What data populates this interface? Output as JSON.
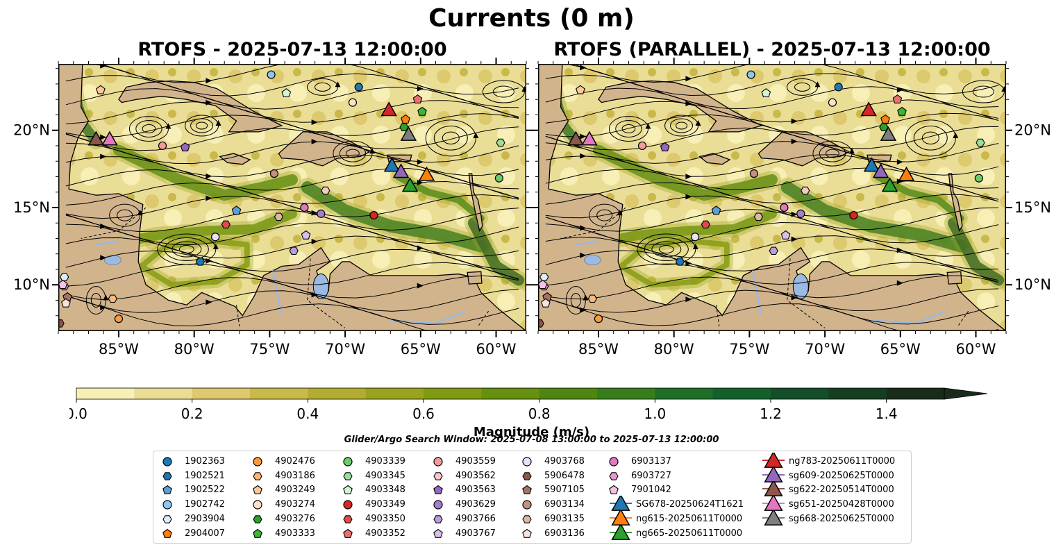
{
  "title": "Currents (0 m)",
  "panels": [
    {
      "title": "RTOFS - 2025-07-13 12:00:00"
    },
    {
      "title": "RTOFS (PARALLEL) - 2025-07-13 12:00:00"
    }
  ],
  "colorbar": {
    "label": "Magnitude (m/s)",
    "ticks": [
      "0.0",
      "0.2",
      "0.4",
      "0.6",
      "0.8",
      "1.0",
      "1.2",
      "1.4"
    ],
    "min": 0,
    "max": 1.5,
    "extend": "max",
    "colors": [
      "#f7efb5",
      "#eadd96",
      "#ddc96e",
      "#c9b94b",
      "#b2ad32",
      "#98a31e",
      "#7f9a13",
      "#669010",
      "#4f8612",
      "#377d1c",
      "#1f6d27",
      "#15602a",
      "#134e28",
      "#153d22",
      "#192c1a"
    ]
  },
  "search_window": "Glider/Argo Search Window: 2025-07-08 13:00:00 to 2025-07-13 12:00:00",
  "axes": {
    "lon_ticks": [
      "85°W",
      "80°W",
      "75°W",
      "70°W",
      "65°W",
      "60°W"
    ],
    "lat_ticks": [
      "20°N",
      "15°N",
      "10°N"
    ],
    "lon_range": [
      -89,
      -58
    ],
    "lat_range": [
      7,
      24.3
    ]
  },
  "land_color": "#d2b48c",
  "lake_color": "#9ab9e3",
  "legend": [
    {
      "label": "1902363",
      "marker": "circle",
      "color": "#1f77b4"
    },
    {
      "label": "1902521",
      "marker": "hexagon",
      "color": "#1f77b4"
    },
    {
      "label": "1902522",
      "marker": "pentagon",
      "color": "#5aa0d8"
    },
    {
      "label": "1902742",
      "marker": "circle",
      "color": "#8ec6ef"
    },
    {
      "label": "2903904",
      "marker": "hexagon",
      "color": "#dcefff"
    },
    {
      "label": "2904007",
      "marker": "pentagon",
      "color": "#ff7f0e"
    },
    {
      "label": "4902476",
      "marker": "circle",
      "color": "#f99a3d"
    },
    {
      "label": "4903186",
      "marker": "hexagon",
      "color": "#fbb67a"
    },
    {
      "label": "4903249",
      "marker": "pentagon",
      "color": "#fcc898"
    },
    {
      "label": "4903274",
      "marker": "circle",
      "color": "#fde2c6"
    },
    {
      "label": "4903276",
      "marker": "hexagon",
      "color": "#2ca02c"
    },
    {
      "label": "4903333",
      "marker": "pentagon",
      "color": "#3ab53a"
    },
    {
      "label": "4903339",
      "marker": "circle",
      "color": "#6acd6a"
    },
    {
      "label": "4903345",
      "marker": "hexagon",
      "color": "#98e098"
    },
    {
      "label": "4903348",
      "marker": "pentagon",
      "color": "#d2f5d2"
    },
    {
      "label": "4903349",
      "marker": "circle",
      "color": "#d62728"
    },
    {
      "label": "4903350",
      "marker": "hexagon",
      "color": "#e04a4a"
    },
    {
      "label": "4903352",
      "marker": "pentagon",
      "color": "#ec7070"
    },
    {
      "label": "4903559",
      "marker": "circle",
      "color": "#f29b9b"
    },
    {
      "label": "4903562",
      "marker": "hexagon",
      "color": "#f8c7c7"
    },
    {
      "label": "4903563",
      "marker": "pentagon",
      "color": "#9467bd"
    },
    {
      "label": "4903629",
      "marker": "circle",
      "color": "#a57fcc"
    },
    {
      "label": "4903766",
      "marker": "hexagon",
      "color": "#bb9ddb"
    },
    {
      "label": "4903767",
      "marker": "pentagon",
      "color": "#d4c0ea"
    },
    {
      "label": "4903768",
      "marker": "circle",
      "color": "#eadff8"
    },
    {
      "label": "5906478",
      "marker": "hexagon",
      "color": "#8c564b"
    },
    {
      "label": "5907105",
      "marker": "pentagon",
      "color": "#a57364"
    },
    {
      "label": "6903134",
      "marker": "circle",
      "color": "#c1927f"
    },
    {
      "label": "6903135",
      "marker": "hexagon",
      "color": "#dcb7a8"
    },
    {
      "label": "6903136",
      "marker": "pentagon",
      "color": "#f6e3da"
    },
    {
      "label": "6903137",
      "marker": "circle",
      "color": "#e377c2"
    },
    {
      "label": "6903727",
      "marker": "hexagon",
      "color": "#ea97d1"
    },
    {
      "label": "7901042",
      "marker": "pentagon",
      "color": "#f4c2e5"
    },
    {
      "label": "SG678-20250624T1621",
      "marker": "triangle",
      "color": "#1f77b4"
    },
    {
      "label": "ng615-20250611T0000",
      "marker": "triangle",
      "color": "#ff7f0e"
    },
    {
      "label": "ng665-20250611T0000",
      "marker": "triangle",
      "color": "#2ca02c"
    },
    {
      "label": "ng783-20250611T0000",
      "marker": "triangle",
      "color": "#d62728"
    },
    {
      "label": "sg609-20250625T0000",
      "marker": "triangle",
      "color": "#9467bd"
    },
    {
      "label": "sg622-20250514T0000",
      "marker": "triangle",
      "color": "#8c564b"
    },
    {
      "label": "sg651-20250428T0000",
      "marker": "triangle",
      "color": "#e377c2"
    },
    {
      "label": "sg668-20250625T0000",
      "marker": "triangle",
      "color": "#7f7f7f"
    }
  ],
  "chart_data": [
    {
      "type": "scatter",
      "panel": "RTOFS - 2025-07-13 12:00:00",
      "xlabel": "",
      "ylabel": "",
      "xlim": [
        -89,
        -58
      ],
      "ylim": [
        7,
        24.3
      ],
      "series": [
        {
          "name": "1902363",
          "points": [
            [
              -69.1,
              22.8
            ]
          ]
        },
        {
          "name": "1902742",
          "points": [
            [
              -74.9,
              23.6
            ]
          ]
        },
        {
          "name": "4903274",
          "points": [
            [
              -69.5,
              21.8
            ]
          ]
        },
        {
          "name": "4903339",
          "points": [
            [
              -59.8,
              16.9
            ]
          ]
        },
        {
          "name": "4903349",
          "points": [
            [
              -68.1,
              14.5
            ]
          ]
        },
        {
          "name": "4903559",
          "points": [
            [
              -82.1,
              19.0
            ]
          ]
        },
        {
          "name": "4903629",
          "points": [
            [
              -71.6,
              14.6
            ]
          ]
        },
        {
          "name": "4903768",
          "points": [
            [
              -78.6,
              13.1
            ]
          ]
        },
        {
          "name": "6903134",
          "points": [
            [
              -74.7,
              17.2
            ]
          ]
        },
        {
          "name": "6903137",
          "points": [
            [
              -72.7,
              15.0
            ]
          ]
        },
        {
          "name": "4902476",
          "points": [
            [
              -85.0,
              7.8
            ]
          ]
        },
        {
          "name": "1902521",
          "points": [
            [
              -79.6,
              11.5
            ]
          ]
        },
        {
          "name": "2903904",
          "points": [
            [
              -88.6,
              10.5
            ]
          ]
        },
        {
          "name": "4903186",
          "points": [
            [
              -85.4,
              9.1
            ]
          ]
        },
        {
          "name": "4903276",
          "points": [
            [
              -66.1,
              20.2
            ]
          ]
        },
        {
          "name": "4903345",
          "points": [
            [
              -59.7,
              19.2
            ]
          ]
        },
        {
          "name": "4903350",
          "points": [
            [
              -77.9,
              13.9
            ]
          ]
        },
        {
          "name": "4903562",
          "points": [
            [
              -71.3,
              16.1
            ]
          ]
        },
        {
          "name": "4903766",
          "points": [
            [
              -73.4,
              12.2
            ]
          ]
        },
        {
          "name": "5906478",
          "points": [
            [
              -88.9,
              7.5
            ]
          ]
        },
        {
          "name": "6903135",
          "points": [
            [
              -74.4,
              14.4
            ]
          ]
        },
        {
          "name": "6903727",
          "points": [
            [
              -88.6,
              9.9
            ]
          ]
        },
        {
          "name": "1902522",
          "points": [
            [
              -77.2,
              14.8
            ]
          ]
        },
        {
          "name": "2904007",
          "points": [
            [
              -66.0,
              20.7
            ]
          ]
        },
        {
          "name": "4903249",
          "points": [
            [
              -86.2,
              22.6
            ]
          ]
        },
        {
          "name": "4903333",
          "points": [
            [
              -64.9,
              21.2
            ]
          ]
        },
        {
          "name": "4903348",
          "points": [
            [
              -73.9,
              22.4
            ]
          ]
        },
        {
          "name": "4903352",
          "points": [
            [
              -65.2,
              22.0
            ]
          ]
        },
        {
          "name": "4903563",
          "points": [
            [
              -80.6,
              18.9
            ]
          ]
        },
        {
          "name": "4903767",
          "points": [
            [
              -72.6,
              13.2
            ]
          ]
        },
        {
          "name": "5907105",
          "points": [
            [
              -88.4,
              9.2
            ]
          ]
        },
        {
          "name": "6903136",
          "points": [
            [
              -88.5,
              8.8
            ]
          ]
        },
        {
          "name": "7901042",
          "points": [
            [
              -88.7,
              10.0
            ]
          ]
        },
        {
          "name": "SG678-20250624T1621",
          "points": [
            [
              -66.9,
              17.7
            ]
          ]
        },
        {
          "name": "ng615-20250611T0000",
          "points": [
            [
              -64.6,
              17.1
            ]
          ]
        },
        {
          "name": "ng665-20250611T0000",
          "points": [
            [
              -65.7,
              16.4
            ]
          ]
        },
        {
          "name": "ng783-20250611T0000",
          "points": [
            [
              -67.1,
              21.3
            ]
          ]
        },
        {
          "name": "sg609-20250625T0000",
          "points": [
            [
              -66.3,
              17.3
            ]
          ]
        },
        {
          "name": "sg622-20250514T0000",
          "points": [
            [
              -86.5,
              19.4
            ]
          ]
        },
        {
          "name": "sg651-20250428T0000",
          "points": [
            [
              -85.6,
              19.4
            ]
          ]
        },
        {
          "name": "sg668-20250625T0000",
          "points": [
            [
              -65.8,
              19.7
            ]
          ]
        }
      ]
    },
    {
      "type": "scatter",
      "panel": "RTOFS (PARALLEL) - 2025-07-13 12:00:00",
      "xlabel": "",
      "ylabel": "",
      "xlim": [
        -89,
        -58
      ],
      "ylim": [
        7,
        24.3
      ],
      "series": [
        {
          "name": "1902363",
          "points": [
            [
              -69.1,
              22.8
            ]
          ]
        },
        {
          "name": "1902742",
          "points": [
            [
              -74.9,
              23.6
            ]
          ]
        },
        {
          "name": "4903274",
          "points": [
            [
              -69.5,
              21.8
            ]
          ]
        },
        {
          "name": "4903339",
          "points": [
            [
              -59.8,
              16.9
            ]
          ]
        },
        {
          "name": "4903349",
          "points": [
            [
              -68.1,
              14.5
            ]
          ]
        },
        {
          "name": "4903559",
          "points": [
            [
              -82.1,
              19.0
            ]
          ]
        },
        {
          "name": "4903629",
          "points": [
            [
              -71.6,
              14.6
            ]
          ]
        },
        {
          "name": "4903768",
          "points": [
            [
              -78.6,
              13.1
            ]
          ]
        },
        {
          "name": "6903134",
          "points": [
            [
              -74.7,
              17.2
            ]
          ]
        },
        {
          "name": "6903137",
          "points": [
            [
              -72.7,
              15.0
            ]
          ]
        },
        {
          "name": "4902476",
          "points": [
            [
              -85.0,
              7.8
            ]
          ]
        },
        {
          "name": "1902521",
          "points": [
            [
              -79.6,
              11.5
            ]
          ]
        },
        {
          "name": "2903904",
          "points": [
            [
              -88.6,
              10.5
            ]
          ]
        },
        {
          "name": "4903186",
          "points": [
            [
              -85.4,
              9.1
            ]
          ]
        },
        {
          "name": "4903276",
          "points": [
            [
              -66.1,
              20.2
            ]
          ]
        },
        {
          "name": "4903345",
          "points": [
            [
              -59.7,
              19.2
            ]
          ]
        },
        {
          "name": "4903350",
          "points": [
            [
              -77.9,
              13.9
            ]
          ]
        },
        {
          "name": "4903562",
          "points": [
            [
              -71.3,
              16.1
            ]
          ]
        },
        {
          "name": "4903766",
          "points": [
            [
              -73.4,
              12.2
            ]
          ]
        },
        {
          "name": "5906478",
          "points": [
            [
              -88.9,
              7.5
            ]
          ]
        },
        {
          "name": "6903135",
          "points": [
            [
              -74.4,
              14.4
            ]
          ]
        },
        {
          "name": "6903727",
          "points": [
            [
              -88.6,
              9.9
            ]
          ]
        },
        {
          "name": "1902522",
          "points": [
            [
              -77.2,
              14.8
            ]
          ]
        },
        {
          "name": "2904007",
          "points": [
            [
              -66.0,
              20.7
            ]
          ]
        },
        {
          "name": "4903249",
          "points": [
            [
              -86.2,
              22.6
            ]
          ]
        },
        {
          "name": "4903333",
          "points": [
            [
              -64.9,
              21.2
            ]
          ]
        },
        {
          "name": "4903348",
          "points": [
            [
              -73.9,
              22.4
            ]
          ]
        },
        {
          "name": "4903352",
          "points": [
            [
              -65.2,
              22.0
            ]
          ]
        },
        {
          "name": "4903563",
          "points": [
            [
              -80.6,
              18.9
            ]
          ]
        },
        {
          "name": "4903767",
          "points": [
            [
              -72.6,
              13.2
            ]
          ]
        },
        {
          "name": "5907105",
          "points": [
            [
              -88.4,
              9.2
            ]
          ]
        },
        {
          "name": "6903136",
          "points": [
            [
              -88.5,
              8.8
            ]
          ]
        },
        {
          "name": "7901042",
          "points": [
            [
              -88.7,
              10.0
            ]
          ]
        },
        {
          "name": "SG678-20250624T1621",
          "points": [
            [
              -66.9,
              17.7
            ]
          ]
        },
        {
          "name": "ng615-20250611T0000",
          "points": [
            [
              -64.6,
              17.1
            ]
          ]
        },
        {
          "name": "ng665-20250611T0000",
          "points": [
            [
              -65.7,
              16.4
            ]
          ]
        },
        {
          "name": "ng783-20250611T0000",
          "points": [
            [
              -67.1,
              21.3
            ]
          ]
        },
        {
          "name": "sg609-20250625T0000",
          "points": [
            [
              -66.3,
              17.3
            ]
          ]
        },
        {
          "name": "sg622-20250514T0000",
          "points": [
            [
              -86.5,
              19.4
            ]
          ]
        },
        {
          "name": "sg651-20250428T0000",
          "points": [
            [
              -85.6,
              19.4
            ]
          ]
        },
        {
          "name": "sg668-20250625T0000",
          "points": [
            [
              -65.8,
              19.7
            ]
          ]
        }
      ]
    }
  ]
}
